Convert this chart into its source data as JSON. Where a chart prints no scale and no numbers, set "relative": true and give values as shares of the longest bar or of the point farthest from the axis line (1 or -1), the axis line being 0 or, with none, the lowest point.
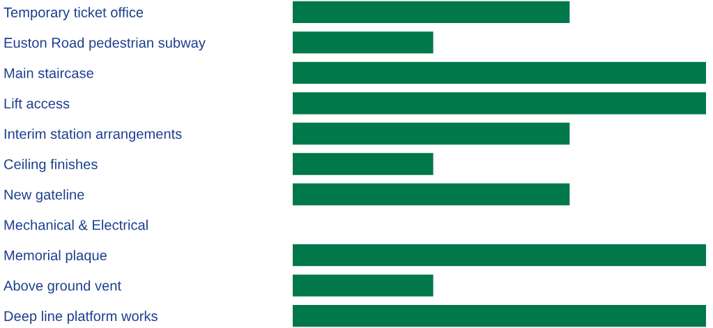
{
  "chart_data": {
    "type": "bar",
    "orientation": "horizontal",
    "relative": true,
    "categories": [
      "Temporary ticket office",
      "Euston Road pedestrian subway",
      "Main staircase",
      "Lift access",
      "Interim station arrangements",
      "Ceiling finishes",
      "New gateline",
      "Mechanical & Electrical",
      "Memorial plaque",
      "Above ground vent",
      "Deep line platform works"
    ],
    "values": [
      0.67,
      0.34,
      1,
      1,
      0.67,
      0.34,
      0.67,
      0,
      1,
      0.34,
      1
    ],
    "color": "#00784a",
    "grid": false,
    "legend": false
  }
}
